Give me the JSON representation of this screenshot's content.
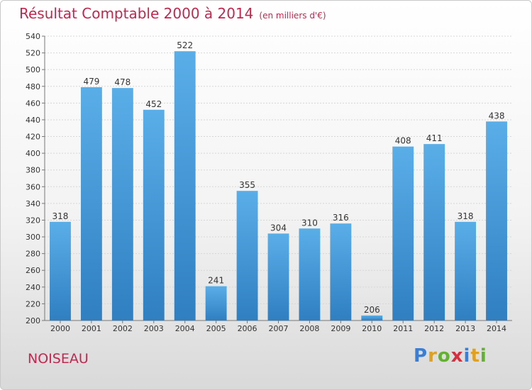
{
  "header": {
    "title": "Résultat Comptable 2000 à 2014",
    "subtitle": "(en milliers d'€)"
  },
  "footer": {
    "location": "NOISEAU",
    "brand_letters": [
      {
        "char": "P",
        "color": "#3a7fd5"
      },
      {
        "char": "r",
        "color": "#e2a11c"
      },
      {
        "char": "o",
        "color": "#63b22f"
      },
      {
        "char": "x",
        "color": "#d6303e"
      },
      {
        "char": "i",
        "color": "#3a7fd5"
      },
      {
        "char": "t",
        "color": "#e2a11c"
      },
      {
        "char": "i",
        "color": "#63b22f"
      }
    ]
  },
  "chart_data": {
    "type": "bar",
    "title": "Résultat Comptable 2000 à 2014",
    "subtitle": "(en milliers d'€)",
    "categories": [
      "2000",
      "2001",
      "2002",
      "2003",
      "2004",
      "2005",
      "2006",
      "2007",
      "2008",
      "2009",
      "2010",
      "2011",
      "2012",
      "2013",
      "2014"
    ],
    "values": [
      318,
      479,
      478,
      452,
      522,
      241,
      355,
      304,
      310,
      316,
      206,
      408,
      411,
      318,
      438
    ],
    "ylim": [
      200,
      540
    ],
    "yticks": [
      200,
      220,
      240,
      260,
      280,
      300,
      320,
      340,
      360,
      380,
      400,
      420,
      440,
      460,
      480,
      500,
      520,
      540
    ],
    "grid": true,
    "bar_color_light": "#5aaee8",
    "bar_color_dark": "#2f7fc1",
    "xlabel": "",
    "ylabel": ""
  }
}
